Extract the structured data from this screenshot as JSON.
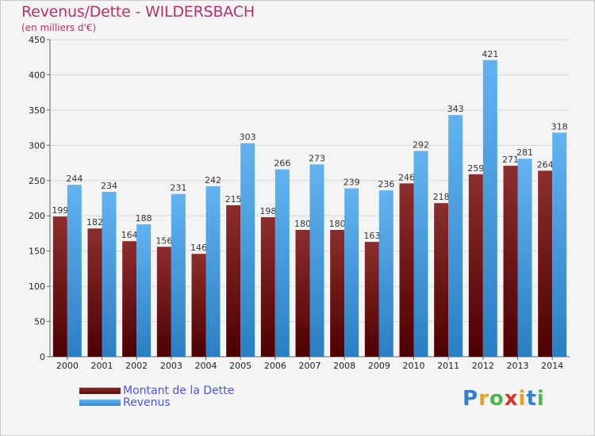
{
  "header": {
    "title": "Revenus/Dette - WILDERSBACH",
    "subtitle": "(en milliers d'€)"
  },
  "chart_data": {
    "type": "bar",
    "categories": [
      "2000",
      "2001",
      "2002",
      "2003",
      "2004",
      "2005",
      "2006",
      "2007",
      "2008",
      "2009",
      "2010",
      "2011",
      "2012",
      "2013",
      "2014"
    ],
    "series": [
      {
        "name": "Montant de la Dette",
        "values": [
          199,
          182,
          164,
          156,
          146,
          215,
          198,
          180,
          180,
          163,
          246,
          218,
          259,
          271,
          264
        ],
        "labels": [
          "199",
          "182",
          "164",
          "156",
          "146",
          "215",
          "198",
          "180",
          "180",
          "163",
          "246",
          "218",
          "259",
          "271",
          "264"
        ],
        "color": "#7a1e1e"
      },
      {
        "name": "Revenus",
        "values": [
          244,
          234,
          188,
          231,
          242,
          303,
          266,
          273,
          239,
          236,
          292,
          343,
          421,
          281,
          318
        ],
        "labels": [
          "244",
          "234",
          "188",
          "231",
          "242",
          "303",
          "266",
          "273",
          "239",
          "236",
          "292",
          "343",
          "421",
          "281",
          "318"
        ],
        "color": "#4ea3e6"
      }
    ],
    "ylim": [
      0,
      450
    ],
    "yticks": [
      0,
      50,
      100,
      150,
      200,
      250,
      300,
      350,
      400,
      450
    ],
    "grid": true,
    "legend_position": "bottom-left"
  },
  "legend": {
    "items": [
      {
        "label": "Montant de la Dette"
      },
      {
        "label": "Revenus"
      }
    ]
  },
  "logo": {
    "text": "Proxiti",
    "letters": [
      {
        "ch": "P",
        "color": "#2f7fd6"
      },
      {
        "ch": "r",
        "color": "#e8a021"
      },
      {
        "ch": "o",
        "color": "#4cb84c"
      },
      {
        "ch": "x",
        "color": "#d8322a"
      },
      {
        "ch": "i",
        "color": "#e8a021"
      },
      {
        "ch": "t",
        "color": "#2f7fd6"
      },
      {
        "ch": "i",
        "color": "#4cb84c"
      }
    ]
  }
}
